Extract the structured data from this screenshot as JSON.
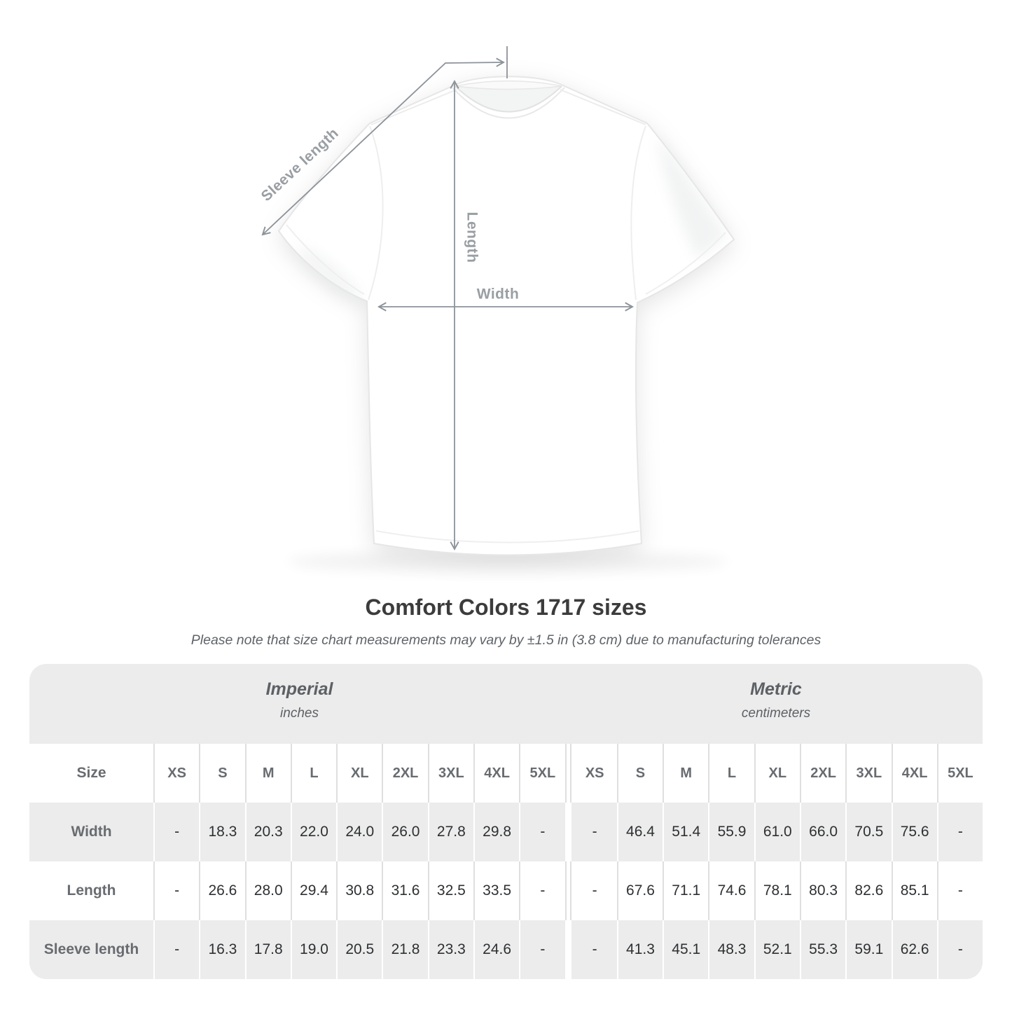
{
  "diagram": {
    "sleeve_length_label": "Sleeve length",
    "length_label": "Length",
    "width_label": "Width"
  },
  "heading": {
    "title": "Comfort Colors 1717 sizes",
    "note": "Please note that size chart measurements may vary by ±1.5 in (3.8 cm) due to manufacturing tolerances"
  },
  "table": {
    "size_label": "Size",
    "sections": [
      {
        "name": "Imperial",
        "unit": "inches"
      },
      {
        "name": "Metric",
        "unit": "centimeters"
      }
    ],
    "sizes": [
      "XS",
      "S",
      "M",
      "L",
      "XL",
      "2XL",
      "3XL",
      "4XL",
      "5XL"
    ],
    "rows": [
      {
        "label": "Width",
        "imperial": [
          "-",
          "18.3",
          "20.3",
          "22.0",
          "24.0",
          "26.0",
          "27.8",
          "29.8",
          "-"
        ],
        "metric": [
          "-",
          "46.4",
          "51.4",
          "55.9",
          "61.0",
          "66.0",
          "70.5",
          "75.6",
          "-"
        ]
      },
      {
        "label": "Length",
        "imperial": [
          "-",
          "26.6",
          "28.0",
          "29.4",
          "30.8",
          "31.6",
          "32.5",
          "33.5",
          "-"
        ],
        "metric": [
          "-",
          "67.6",
          "71.1",
          "74.6",
          "78.1",
          "80.3",
          "82.6",
          "85.1",
          "-"
        ]
      },
      {
        "label": "Sleeve length",
        "imperial": [
          "-",
          "16.3",
          "17.8",
          "19.0",
          "20.5",
          "21.8",
          "23.3",
          "24.6",
          "-"
        ],
        "metric": [
          "-",
          "41.3",
          "45.1",
          "48.3",
          "52.1",
          "55.3",
          "59.1",
          "62.6",
          "-"
        ]
      }
    ]
  },
  "colors": {
    "band_gray": "#ececec",
    "row_gray": "#ececec",
    "separator_on_white": "#dfdfdf",
    "annotation_line": "#8d9399",
    "annotation_text": "#999ea3",
    "title_text": "#3c3c3c",
    "note_text": "#5f6368",
    "muted_text": "#686c70",
    "value_text": "#2e3032"
  }
}
